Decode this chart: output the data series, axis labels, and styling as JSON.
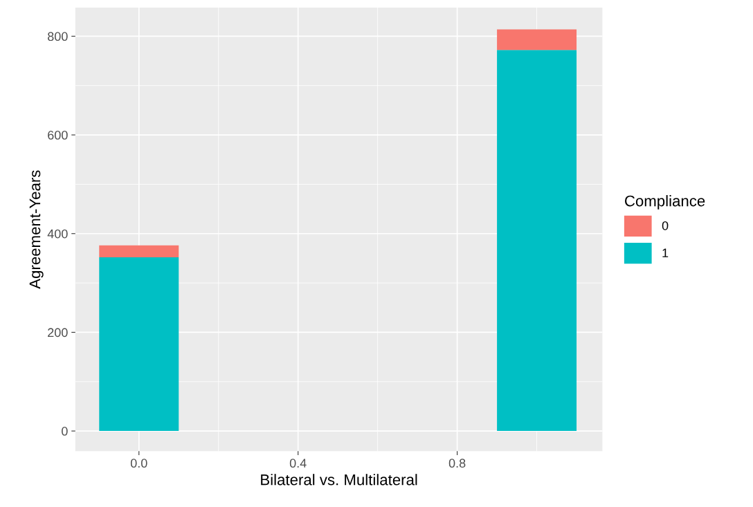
{
  "chart_data": {
    "type": "bar",
    "stacked": true,
    "xlabel": "Bilateral vs. Multilateral",
    "ylabel": "Agreement-Years",
    "legend_title": "Compliance",
    "x": [
      0,
      1
    ],
    "series": [
      {
        "name": "1",
        "color": "#00bfc4",
        "values": [
          352,
          772
        ]
      },
      {
        "name": "0",
        "color": "#f8766d",
        "values": [
          24,
          42
        ]
      }
    ],
    "xlim": [
      -0.16,
      1.165
    ],
    "xticks": [
      {
        "value": 0,
        "label": "0.0"
      },
      {
        "value": 0.4,
        "label": "0.4"
      },
      {
        "value": 0.8,
        "label": "0.8"
      }
    ],
    "ylim": [
      -41,
      858
    ],
    "yticks": [
      0,
      200,
      400,
      600,
      800
    ],
    "grid": true,
    "legend": "right"
  }
}
